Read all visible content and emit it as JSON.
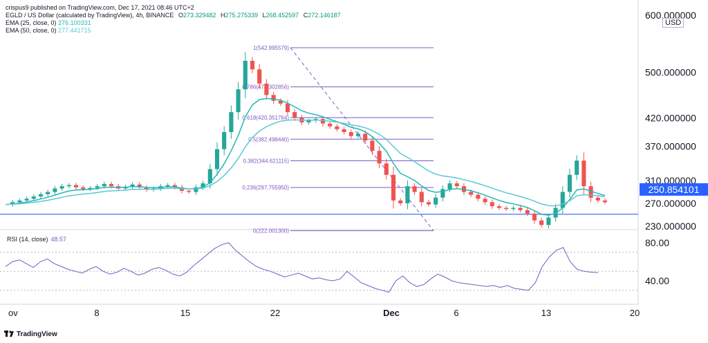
{
  "header": {
    "publisher": "crispus9 published on TradingView.com, Dec 17, 2021 08:46 UTC+2",
    "symbol": "EGLD / US Dollar (calculated by TradingView), 4h, BINANCE",
    "ohlc": {
      "o_label": "O",
      "o": "273.329482",
      "h_label": "H",
      "h": "275.275339",
      "l_label": "L",
      "l": "268.452597",
      "c_label": "C",
      "c": "272.146187"
    },
    "ema25_label": "EMA (25, close, 0)",
    "ema25_value": "276.100331",
    "ema50_label": "EMA (50, close, 0)",
    "ema50_value": "277.441715"
  },
  "currency": "USD",
  "current_price_label": "250.854101",
  "rsi": {
    "label": "RSI (14, close)",
    "value": "48.57"
  },
  "footer": {
    "brand": "TradingView"
  },
  "colors": {
    "up": "#26a69a",
    "down": "#ef5350",
    "ema25": "#1fb8b8",
    "ema50": "#5bc7d4",
    "fib": "#7e57c2",
    "hline": "#2962ff",
    "rsi": "#7e57c2",
    "axis_text": "#131722"
  },
  "chart_data": [
    {
      "type": "candlestick",
      "title": "EGLD / US Dollar",
      "y_ticks": [
        "600.000000",
        "500.000000",
        "420.000000",
        "370.000000",
        "310.000000",
        "270.000000",
        "230.000000"
      ],
      "x_ticks": [
        "ov",
        "8",
        "15",
        "22",
        "Dec",
        "6",
        "13",
        "20"
      ],
      "horizontal_line": {
        "value": 250.854101
      },
      "fibonacci": [
        {
          "level": "1",
          "price": 542.995579,
          "label": "1(542.995579)"
        },
        {
          "level": "0.786",
          "price": 474.302856,
          "label": "0.786(474.302856)"
        },
        {
          "level": "0.618",
          "price": 420.351764,
          "label": "0.618(420.351764)"
        },
        {
          "level": "0.5",
          "price": 382.49844,
          "label": "0.5(382.498440)"
        },
        {
          "level": "0.382",
          "price": 344.621115,
          "label": "0.382(344.621115)"
        },
        {
          "level": "0.236",
          "price": 297.75595,
          "label": "0.236(297.755950)"
        },
        {
          "level": "0",
          "price": 222.0013,
          "label": "0(222.001300)"
        }
      ],
      "price_path": [
        268,
        272,
        275,
        278,
        282,
        286,
        290,
        296,
        300,
        302,
        298,
        295,
        297,
        300,
        304,
        300,
        296,
        299,
        303,
        298,
        294,
        296,
        300,
        302,
        298,
        292,
        290,
        298,
        305,
        330,
        365,
        395,
        430,
        470,
        520,
        505,
        480,
        460,
        450,
        445,
        430,
        420,
        412,
        415,
        418,
        410,
        405,
        400,
        395,
        388,
        392,
        380,
        362,
        340,
        320,
        275,
        270,
        300,
        290,
        272,
        268,
        280,
        295,
        305,
        300,
        290,
        285,
        278,
        272,
        265,
        262,
        260,
        262,
        258,
        252,
        240,
        232,
        245,
        262,
        290,
        320,
        345,
        300,
        280,
        275,
        272
      ]
    },
    {
      "type": "line",
      "title": "RSI (14, close)",
      "y_ticks": [
        "80.00",
        "40.00"
      ],
      "series": [
        {
          "name": "RSI",
          "values": [
            55,
            60,
            62,
            58,
            54,
            60,
            63,
            58,
            55,
            52,
            50,
            48,
            52,
            55,
            50,
            47,
            49,
            53,
            50,
            46,
            48,
            52,
            54,
            51,
            47,
            45,
            49,
            56,
            62,
            68,
            74,
            78,
            80,
            72,
            66,
            60,
            55,
            52,
            50,
            47,
            44,
            46,
            48,
            45,
            42,
            43,
            41,
            40,
            42,
            50,
            44,
            38,
            35,
            32,
            30,
            28,
            40,
            45,
            38,
            34,
            36,
            42,
            47,
            44,
            40,
            38,
            37,
            36,
            35,
            34,
            35,
            33,
            35,
            32,
            31,
            30,
            38,
            55,
            65,
            72,
            75,
            60,
            52,
            50,
            49,
            48.57
          ]
        }
      ]
    }
  ]
}
